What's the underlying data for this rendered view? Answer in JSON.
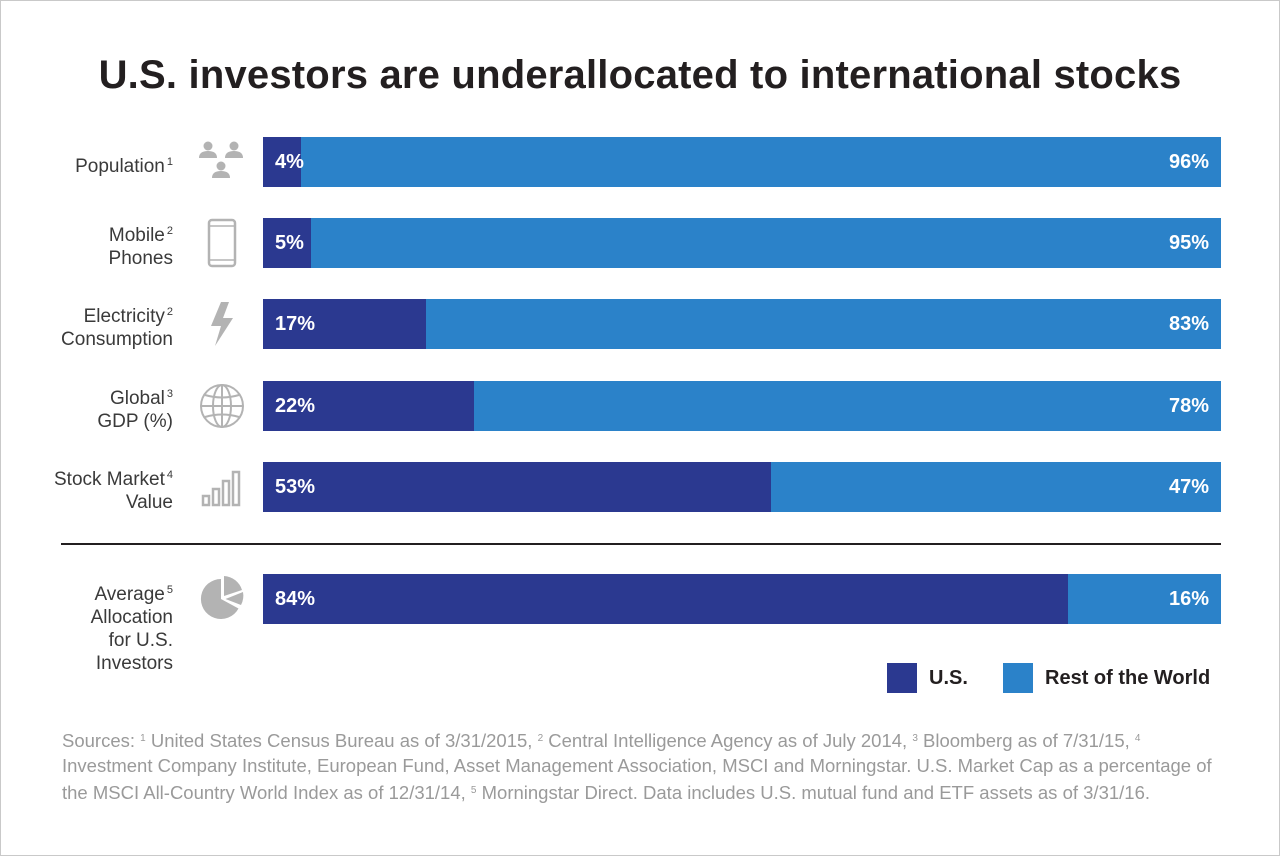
{
  "title": "U.S. investors are underallocated to international stocks",
  "colors": {
    "us": "#2b3990",
    "rest_of_world": "#2b82c9",
    "icon": "#b3b3b3"
  },
  "rows": [
    {
      "label_lines": [
        "Population"
      ],
      "note": "1",
      "icon": "people-icon"
    },
    {
      "label_lines": [
        "Mobile",
        "Phones"
      ],
      "note": "2",
      "icon": "mobile-phone-icon"
    },
    {
      "label_lines": [
        "Electricity",
        "Consumption"
      ],
      "note": "2",
      "icon": "lightning-bolt-icon"
    },
    {
      "label_lines": [
        "Global",
        "GDP (%)"
      ],
      "note": "3",
      "icon": "globe-icon"
    },
    {
      "label_lines": [
        "Stock Market",
        "Value"
      ],
      "note": "4",
      "icon": "bar-chart-icon"
    },
    {
      "label_lines": [
        "Average",
        "Allocation",
        "for U.S.",
        "Investors"
      ],
      "note": "5",
      "icon": "pie-chart-icon"
    }
  ],
  "chart_data": {
    "type": "bar",
    "orientation": "horizontal",
    "stacked": true,
    "title": "U.S. investors are underallocated to international stocks",
    "categories": [
      "Population",
      "Mobile Phones",
      "Electricity Consumption",
      "Global GDP (%)",
      "Stock Market Value",
      "Average Allocation for U.S. Investors"
    ],
    "series": [
      {
        "name": "U.S.",
        "values": [
          4,
          5,
          17,
          22,
          53,
          84
        ],
        "labels": [
          "4%",
          "5%",
          "17%",
          "22%",
          "53%",
          "84%"
        ]
      },
      {
        "name": "Rest of the World",
        "values": [
          96,
          95,
          83,
          78,
          47,
          16
        ],
        "labels": [
          "96%",
          "95%",
          "83%",
          "78%",
          "47%",
          "16%"
        ]
      }
    ],
    "xlim": [
      0,
      100
    ],
    "legend_position": "bottom-right",
    "grid": false
  },
  "legend": {
    "us_label": "U.S.",
    "row_label": "Rest of the World"
  },
  "sources": {
    "prefix": "Sources: ",
    "items": [
      {
        "note": "1",
        "text": " United States Census Bureau as of 3/31/2015, "
      },
      {
        "note": "2",
        "text": " Central Intelligence Agency as of July 2014, "
      },
      {
        "note": "3",
        "text": " Bloomberg as of 7/31/15, "
      },
      {
        "note": "4",
        "text": " Investment Company Institute, European Fund, Asset Management Association, MSCI and Morningstar. U.S. Market Cap as a percentage of the MSCI All-Country World Index as of 12/31/14, "
      },
      {
        "note": "5",
        "text": " Morningstar Direct. Data includes U.S. mutual fund and ETF assets as of 3/31/16."
      }
    ]
  }
}
